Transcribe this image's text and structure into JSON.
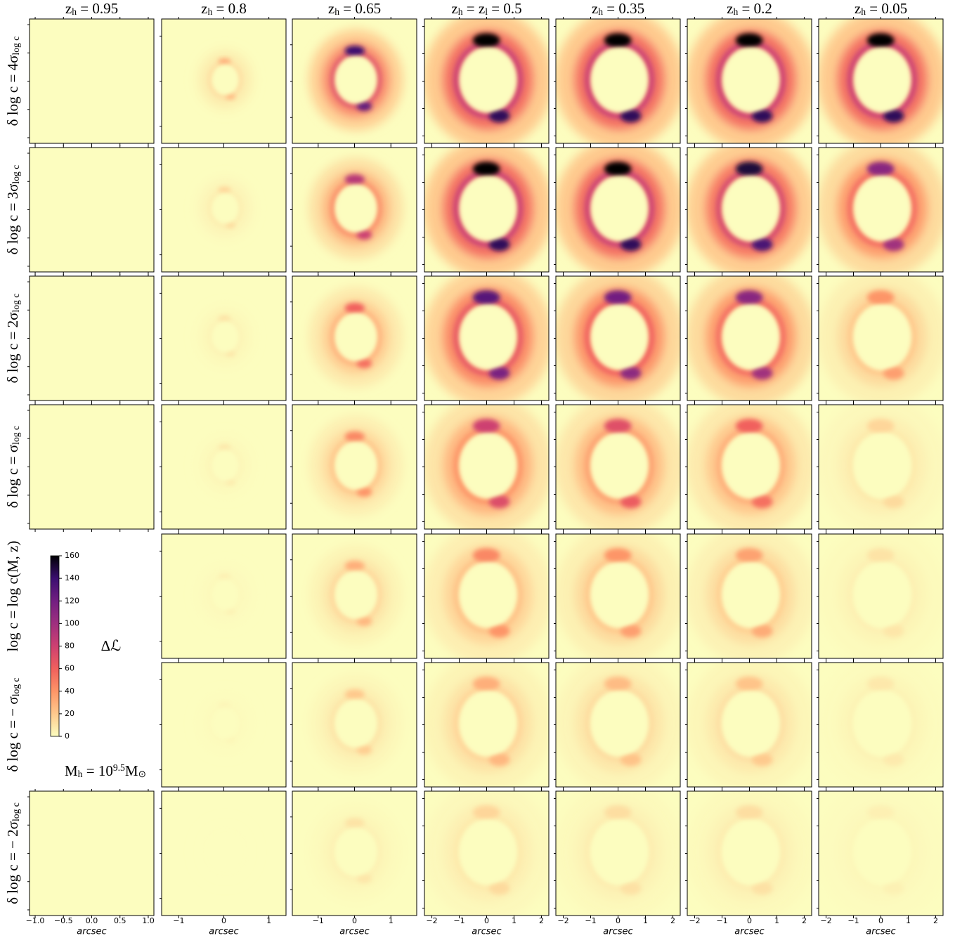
{
  "chart_data": {
    "type": "heatmap-grid",
    "columns": [
      {
        "title": [
          {
            "text": "z"
          },
          {
            "text": "h",
            "pos": "sub"
          },
          {
            "text": " = 0.95"
          }
        ],
        "xlim": [
          -1.1,
          1.1
        ],
        "xticks": [
          {
            "value": -1.0,
            "label": "−1.0"
          },
          {
            "value": -0.5,
            "label": "−0.5"
          },
          {
            "value": 0.0,
            "label": "0.0"
          },
          {
            "value": 0.5,
            "label": "0.5"
          },
          {
            "value": 1.0,
            "label": "1.0"
          }
        ]
      },
      {
        "title": [
          {
            "text": "z"
          },
          {
            "text": "h",
            "pos": "sub"
          },
          {
            "text": " = 0.8"
          }
        ],
        "xlim": [
          -1.38,
          1.38
        ],
        "xticks": [
          {
            "value": -1,
            "label": "−1"
          },
          0,
          1
        ]
      },
      {
        "title": [
          {
            "text": "z"
          },
          {
            "text": "h",
            "pos": "sub"
          },
          {
            "text": " = 0.65"
          }
        ],
        "xlim": [
          -1.71,
          1.71
        ],
        "xticks": [
          {
            "value": -1,
            "label": "−1"
          },
          0,
          1
        ]
      },
      {
        "title": [
          {
            "text": "z"
          },
          {
            "text": "h",
            "pos": "sub"
          },
          {
            "text": " = z"
          },
          {
            "text": "l",
            "pos": "sub"
          },
          {
            "text": " = 0.5"
          }
        ],
        "xlim": [
          -2.27,
          2.27
        ],
        "xticks": [
          {
            "value": -2,
            "label": "−2"
          },
          {
            "value": -1,
            "label": "−1"
          },
          0,
          1,
          2
        ]
      },
      {
        "title": [
          {
            "text": "z"
          },
          {
            "text": "h",
            "pos": "sub"
          },
          {
            "text": " = 0.35"
          }
        ],
        "xlim": [
          -2.27,
          2.27
        ],
        "xticks": [
          {
            "value": -2,
            "label": "−2"
          },
          {
            "value": -1,
            "label": "−1"
          },
          0,
          1,
          2
        ]
      },
      {
        "title": [
          {
            "text": "z"
          },
          {
            "text": "h",
            "pos": "sub"
          },
          {
            "text": " = 0.2"
          }
        ],
        "xlim": [
          -2.27,
          2.27
        ],
        "xticks": [
          {
            "value": -2,
            "label": "−2"
          },
          {
            "value": -1,
            "label": "−1"
          },
          0,
          1,
          2
        ]
      },
      {
        "title": [
          {
            "text": "z"
          },
          {
            "text": "h",
            "pos": "sub"
          },
          {
            "text": " = 0.05"
          }
        ],
        "xlim": [
          -2.27,
          2.27
        ],
        "xticks": [
          {
            "value": -2,
            "label": "−2"
          },
          {
            "value": -1,
            "label": "−1"
          },
          0,
          1,
          2
        ]
      }
    ],
    "rows": [
      {
        "label": [
          {
            "text": "δ log c = 4σ"
          },
          {
            "text": "log c",
            "pos": "sub"
          }
        ]
      },
      {
        "label": [
          {
            "text": "δ log c = 3σ"
          },
          {
            "text": "log c",
            "pos": "sub"
          }
        ]
      },
      {
        "label": [
          {
            "text": "δ log c = 2σ"
          },
          {
            "text": "log c",
            "pos": "sub"
          }
        ]
      },
      {
        "label": [
          {
            "text": "δ log c = σ"
          },
          {
            "text": "log c",
            "pos": "sub"
          }
        ]
      },
      {
        "label": [
          {
            "text": "log c = log c(M, z)"
          }
        ]
      },
      {
        "label": [
          {
            "text": "δ log c = − σ"
          },
          {
            "text": "log c",
            "pos": "sub"
          }
        ]
      },
      {
        "label": [
          {
            "text": "δ log c = − 2σ"
          },
          {
            "text": "log c",
            "pos": "sub"
          }
        ]
      }
    ],
    "xlabel": "arcsec",
    "peak_values": [
      [
        0,
        30,
        140,
        160,
        160,
        160,
        160
      ],
      [
        0,
        15,
        90,
        160,
        160,
        150,
        110
      ],
      [
        0,
        10,
        60,
        130,
        120,
        110,
        40
      ],
      [
        0,
        8,
        45,
        80,
        70,
        60,
        15
      ],
      [
        null,
        5,
        30,
        45,
        40,
        35,
        10
      ],
      [
        null,
        3,
        20,
        30,
        25,
        22,
        8
      ],
      [
        0,
        0,
        10,
        15,
        12,
        12,
        5
      ]
    ],
    "colorbar": {
      "label": [
        {
          "text": "Δℒ"
        }
      ],
      "clim": [
        0,
        160
      ],
      "ticks": [
        0,
        20,
        40,
        60,
        80,
        100,
        120,
        140,
        160
      ],
      "colormap": [
        "#fcfdbf",
        "#fec98d",
        "#fd9567",
        "#f1605d",
        "#cd4071",
        "#9e2f7f",
        "#721f81",
        "#3b0f70",
        "#000004"
      ]
    },
    "annotation": [
      {
        "text": "M"
      },
      {
        "text": "h",
        "pos": "sub"
      },
      {
        "text": " = 10"
      },
      {
        "text": "9.5",
        "pos": "sup"
      },
      {
        "text": "M"
      },
      {
        "text": "⊙",
        "pos": "sub"
      }
    ]
  }
}
